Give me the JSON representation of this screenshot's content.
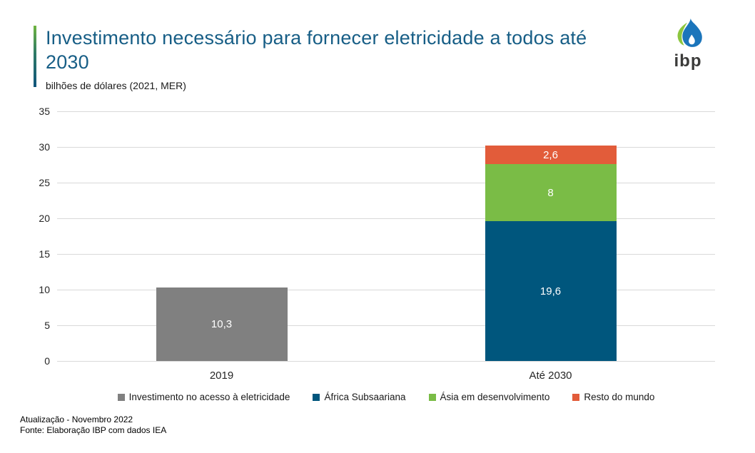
{
  "header": {
    "title_line1": "Investimento necessário para fornecer eletricidade a todos até",
    "title_line2": "2030",
    "subtitle": "bilhões de dólares (2021, MER)"
  },
  "logo": {
    "text": "ibp"
  },
  "footer": {
    "line1": "Atualização - Novembro 2022",
    "line2": "Fonte: Elaboração IBP com dados IEA"
  },
  "colors": {
    "title_text": "#175E86",
    "accent_gradient_top": "#6FB43F",
    "accent_gradient_bottom": "#10547C",
    "gridline": "#D9D9D9",
    "axis_text": "#262626",
    "value_label_text": "#FFFFFF",
    "bar_gray": "#808080",
    "bar_blue": "#00567D",
    "bar_green": "#7ABC46",
    "bar_orange": "#E25C3A",
    "logo_green": "#8CC63E",
    "logo_blue": "#1B75BB",
    "logo_text": "#3B3B3A"
  },
  "chart_data": {
    "type": "bar",
    "stacked": true,
    "title": "Investimento necessário para fornecer eletricidade a todos até 2030",
    "ylabel": "bilhões de dólares (2021, MER)",
    "xlabel": "",
    "categories": [
      "2019",
      "Até 2030"
    ],
    "series": [
      {
        "name": "Investimento no acesso à eletricidade",
        "color": "#808080",
        "values": [
          10.3,
          0
        ],
        "value_labels": [
          "10,3",
          ""
        ]
      },
      {
        "name": "África Subsaariana",
        "color": "#00567D",
        "values": [
          0,
          19.6
        ],
        "value_labels": [
          "",
          "19,6"
        ]
      },
      {
        "name": "Ásia em desenvolvimento",
        "color": "#7ABC46",
        "values": [
          0,
          8
        ],
        "value_labels": [
          "",
          "8"
        ]
      },
      {
        "name": "Resto do mundo",
        "color": "#E25C3A",
        "values": [
          0,
          2.6
        ],
        "value_labels": [
          "",
          "2,6"
        ]
      }
    ],
    "ylim": [
      0,
      35
    ],
    "ytick_step": 5,
    "grid": true,
    "legend_position": "bottom"
  }
}
